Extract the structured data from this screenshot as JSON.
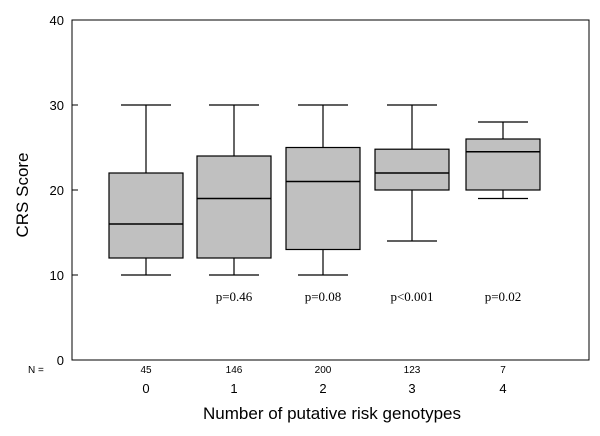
{
  "chart_data": {
    "type": "box",
    "ylabel": "CRS Score",
    "xlabel": "Number of putative risk genotypes",
    "ylim": [
      0,
      40
    ],
    "yticks": [
      0,
      10,
      20,
      30,
      40
    ],
    "n_label": "N =",
    "categories": [
      "0",
      "1",
      "2",
      "3",
      "4"
    ],
    "n": [
      "45",
      "146",
      "200",
      "123",
      "7"
    ],
    "p_values": [
      "",
      "p=0.46",
      "p=0.08",
      "p<0.001",
      "p=0.02"
    ],
    "boxes": [
      {
        "min": 10,
        "q1": 12,
        "median": 16,
        "q3": 22,
        "max": 30
      },
      {
        "min": 10,
        "q1": 12,
        "median": 19,
        "q3": 24,
        "max": 30
      },
      {
        "min": 10,
        "q1": 13,
        "median": 21,
        "q3": 25,
        "max": 30
      },
      {
        "min": 14,
        "q1": 20,
        "median": 22,
        "q3": 24.8,
        "max": 30
      },
      {
        "min": 19,
        "q1": 20,
        "median": 24.5,
        "q3": 26,
        "max": 28
      }
    ]
  }
}
